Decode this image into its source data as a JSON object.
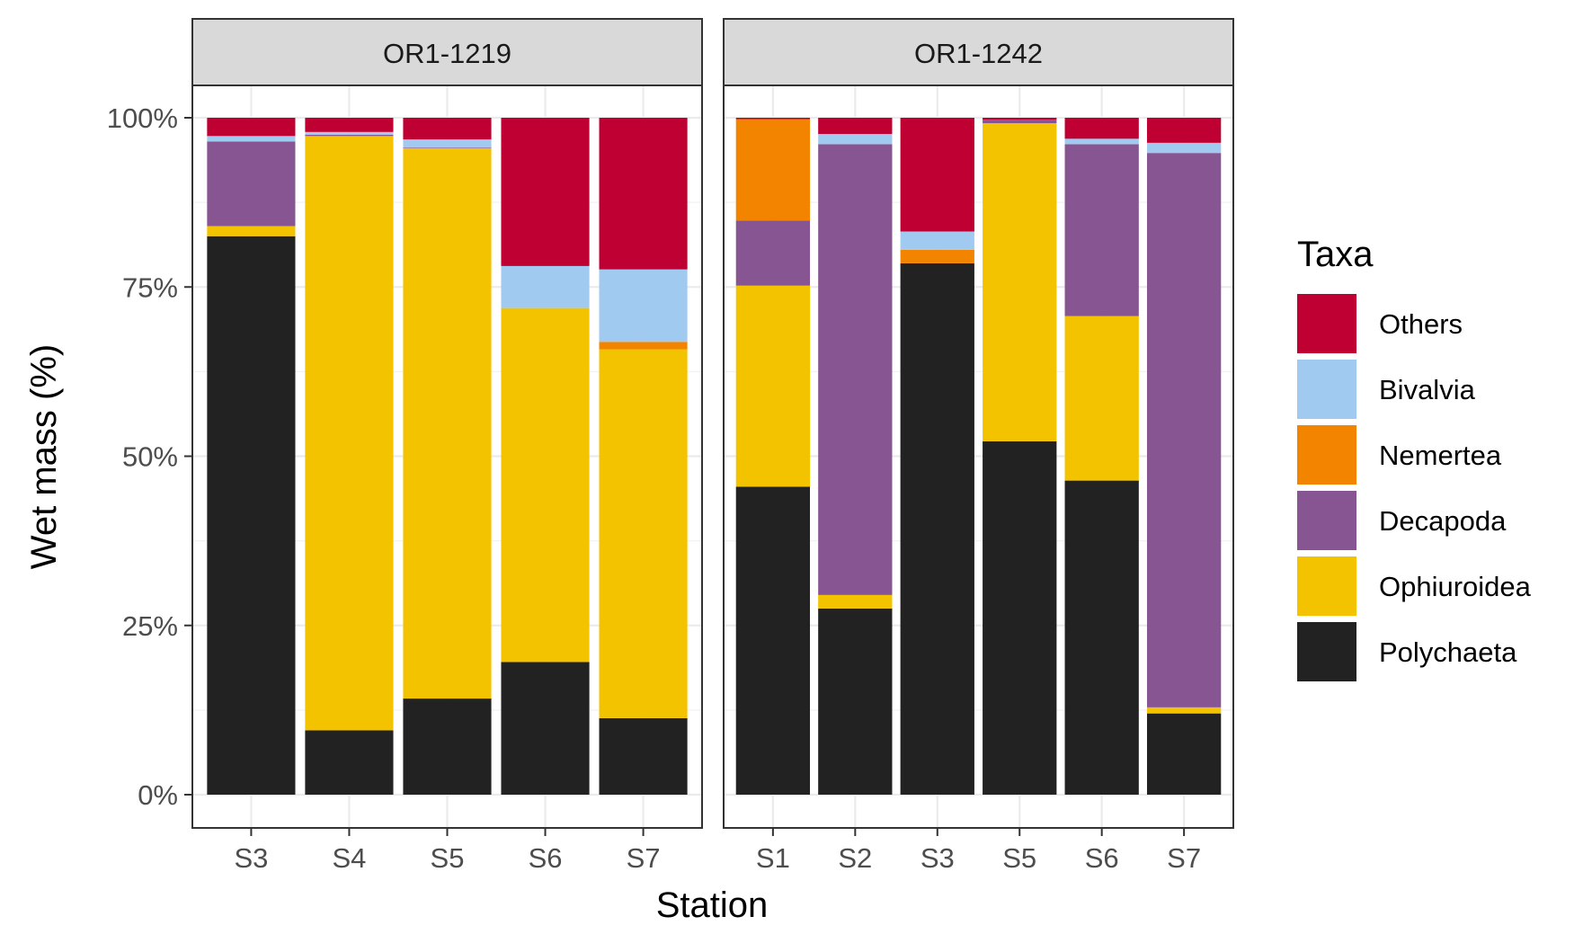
{
  "chart_data": {
    "type": "bar",
    "stacked": true,
    "xlabel": "Station",
    "ylabel": "Wet mass (%)",
    "ylim": [
      0,
      100
    ],
    "yticks": [
      "0%",
      "25%",
      "50%",
      "75%",
      "100%"
    ],
    "grid": true,
    "legend": {
      "title": "Taxa",
      "placement": "right",
      "entries": [
        "Others",
        "Bivalvia",
        "Nemertea",
        "Decapoda",
        "Ophiuroidea",
        "Polychaeta"
      ]
    },
    "colors": {
      "Polychaeta": "#222222",
      "Ophiuroidea": "#F3C300",
      "Decapoda": "#875692",
      "Nemertea": "#F38400",
      "Bivalvia": "#A1CAF1",
      "Others": "#BE0032"
    },
    "stack_order": [
      "Polychaeta",
      "Ophiuroidea",
      "Decapoda",
      "Nemertea",
      "Bivalvia",
      "Others"
    ],
    "panels": [
      {
        "name": "OR1-1219",
        "categories": [
          "S3",
          "S4",
          "S5",
          "S6",
          "S7"
        ],
        "series": [
          {
            "name": "Polychaeta",
            "values": [
              82.5,
              9.5,
              14.2,
              19.6,
              11.3
            ]
          },
          {
            "name": "Ophiuroidea",
            "values": [
              1.5,
              87.8,
              81.3,
              52.3,
              54.5
            ]
          },
          {
            "name": "Decapoda",
            "values": [
              12.5,
              0.2,
              0.1,
              0,
              0
            ]
          },
          {
            "name": "Nemertea",
            "values": [
              0,
              0,
              0,
              0,
              1.1
            ]
          },
          {
            "name": "Bivalvia",
            "values": [
              0.8,
              0.4,
              1.2,
              6.2,
              10.7
            ]
          },
          {
            "name": "Others",
            "values": [
              2.7,
              2.1,
              3.2,
              21.9,
              22.4
            ]
          }
        ]
      },
      {
        "name": "OR1-1242",
        "categories": [
          "S1",
          "S2",
          "S3",
          "S5",
          "S6",
          "S7"
        ],
        "series": [
          {
            "name": "Polychaeta",
            "values": [
              45.5,
              27.5,
              78.5,
              52.2,
              46.4,
              12.0
            ]
          },
          {
            "name": "Ophiuroidea",
            "values": [
              29.7,
              2.0,
              0,
              47.0,
              24.3,
              0.9
            ]
          },
          {
            "name": "Decapoda",
            "values": [
              9.6,
              66.6,
              0,
              0.5,
              25.4,
              81.9
            ]
          },
          {
            "name": "Nemertea",
            "values": [
              15.0,
              0,
              2.0,
              0,
              0,
              0
            ]
          },
          {
            "name": "Bivalvia",
            "values": [
              0,
              1.5,
              2.7,
              0,
              0.8,
              1.5
            ]
          },
          {
            "name": "Others",
            "values": [
              0.2,
              2.4,
              16.8,
              0.3,
              3.1,
              3.7
            ]
          }
        ]
      }
    ]
  }
}
